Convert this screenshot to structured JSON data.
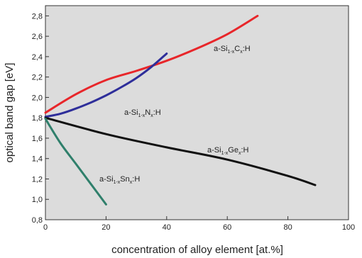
{
  "chart_data": {
    "type": "line",
    "xlabel": "concentration of alloy element [at.%]",
    "ylabel": "optical band gap [eV]",
    "xlim": [
      0,
      100
    ],
    "ylim": [
      0.8,
      2.9
    ],
    "x_ticks": [
      "0",
      "20",
      "40",
      "60",
      "80",
      "100"
    ],
    "y_ticks": [
      "0,8",
      "1,0",
      "1,2",
      "1,4",
      "1,6",
      "1,8",
      "2,0",
      "2,2",
      "2,4",
      "2,6",
      "2,8"
    ],
    "grid": false,
    "plot_background": "#dcdcdc",
    "series": [
      {
        "label_base": "a-Si",
        "label_sub1": "1-x",
        "label_elem": "C",
        "label_sub2": "x",
        "label_tail": ":H",
        "color": "#e8262a",
        "x": [
          0,
          10,
          20,
          30,
          40,
          50,
          60,
          70
        ],
        "y": [
          1.85,
          2.03,
          2.17,
          2.26,
          2.36,
          2.48,
          2.62,
          2.8
        ]
      },
      {
        "label_base": "a-Si",
        "label_sub1": "1-x",
        "label_elem": "N",
        "label_sub2": "x",
        "label_tail": ":H",
        "color": "#2e2e9a",
        "x": [
          0,
          5,
          10,
          15,
          20,
          25,
          30,
          35,
          40
        ],
        "y": [
          1.81,
          1.84,
          1.89,
          1.95,
          2.02,
          2.1,
          2.19,
          2.3,
          2.43
        ]
      },
      {
        "label_base": "a-Si",
        "label_sub1": "1-x",
        "label_elem": "Ge",
        "label_sub2": "x",
        "label_tail": ":H",
        "color": "#111111",
        "x": [
          0,
          20,
          40,
          60,
          80,
          89
        ],
        "y": [
          1.8,
          1.64,
          1.51,
          1.39,
          1.23,
          1.14
        ]
      },
      {
        "label_base": "a-Si",
        "label_sub1": "1-x",
        "label_elem": "Sn",
        "label_sub2": "x",
        "label_tail": ":H",
        "color": "#2f7f6b",
        "x": [
          0,
          5,
          10,
          15,
          20
        ],
        "y": [
          1.79,
          1.55,
          1.35,
          1.15,
          0.95
        ]
      }
    ]
  }
}
